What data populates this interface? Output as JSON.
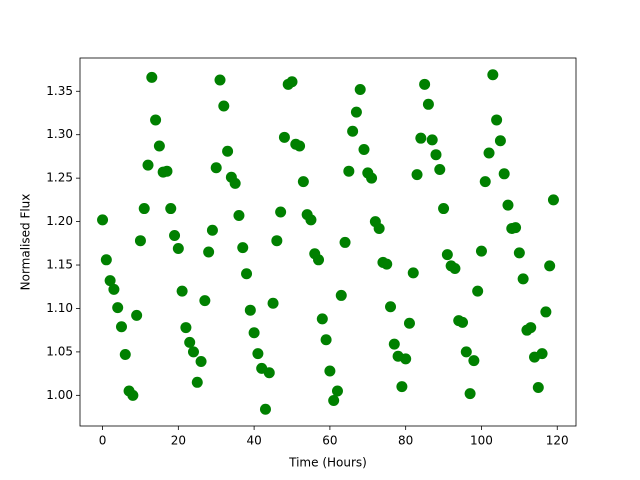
{
  "chart_data": {
    "type": "scatter",
    "xlabel": "Time (Hours)",
    "ylabel": "Normalised Flux",
    "series": [
      {
        "color": "#008000",
        "x": [
          0,
          1,
          2,
          3,
          4,
          5,
          6,
          7,
          8,
          9,
          10,
          11,
          12,
          13,
          14,
          15,
          16,
          17,
          18,
          19,
          20,
          21,
          22,
          23,
          24,
          25,
          26,
          27,
          28,
          29,
          30,
          31,
          32,
          33,
          34,
          35,
          36,
          37,
          38,
          39,
          40,
          41,
          42,
          43,
          44,
          45,
          46,
          47,
          48,
          49,
          50,
          51,
          52,
          53,
          54,
          55,
          56,
          57,
          58,
          59,
          60,
          61,
          62,
          63,
          64,
          65,
          66,
          67,
          68,
          69,
          70,
          71,
          72,
          73,
          74,
          75,
          76,
          77,
          78,
          79,
          80,
          81,
          82,
          83,
          84,
          85,
          86,
          87,
          88,
          89,
          90,
          91,
          92,
          93,
          94,
          95,
          96,
          97,
          98,
          99,
          100,
          101,
          102,
          103,
          104,
          105,
          106,
          107,
          108,
          109,
          110,
          111,
          112,
          113,
          114,
          115,
          116,
          117,
          118,
          119
        ],
        "values": [
          1.202,
          1.156,
          1.132,
          1.122,
          1.101,
          1.079,
          1.047,
          1.005,
          1.0,
          1.092,
          1.178,
          1.215,
          1.265,
          1.366,
          1.317,
          1.287,
          1.257,
          1.258,
          1.215,
          1.184,
          1.169,
          1.12,
          1.078,
          1.061,
          1.05,
          1.015,
          1.039,
          1.109,
          1.165,
          1.19,
          1.262,
          1.363,
          1.333,
          1.281,
          1.251,
          1.244,
          1.207,
          1.17,
          1.14,
          1.098,
          1.072,
          1.048,
          1.031,
          0.984,
          1.026,
          1.106,
          1.178,
          1.211,
          1.297,
          1.358,
          1.361,
          1.289,
          1.287,
          1.246,
          1.208,
          1.202,
          1.163,
          1.156,
          1.088,
          1.064,
          1.028,
          0.994,
          1.005,
          1.115,
          1.176,
          1.258,
          1.304,
          1.326,
          1.352,
          1.283,
          1.256,
          1.25,
          1.2,
          1.192,
          1.153,
          1.151,
          1.102,
          1.059,
          1.045,
          1.01,
          1.042,
          1.083,
          1.141,
          1.254,
          1.296,
          1.358,
          1.335,
          1.294,
          1.277,
          1.26,
          1.215,
          1.162,
          1.149,
          1.146,
          1.086,
          1.084,
          1.05,
          1.002,
          1.04,
          1.12,
          1.166,
          1.246,
          1.279,
          1.369,
          1.317,
          1.293,
          1.255,
          1.219,
          1.192,
          1.193,
          1.164,
          1.134,
          1.075,
          1.078,
          1.044,
          1.009,
          1.048,
          1.096,
          1.149,
          1.225
        ]
      }
    ],
    "xlim": [
      -5.95,
      124.95
    ],
    "xticks": [
      0,
      20,
      40,
      60,
      80,
      100,
      120
    ],
    "ylim": [
      0.9647,
      1.3883
    ],
    "yticks": [
      {
        "value": 1,
        "label": "1.00"
      },
      1.05,
      {
        "value": 1.1,
        "label": "1.10"
      },
      1.15,
      {
        "value": 1.2,
        "label": "1.20"
      },
      1.25,
      {
        "value": 1.3,
        "label": "1.30"
      },
      1.35
    ]
  }
}
